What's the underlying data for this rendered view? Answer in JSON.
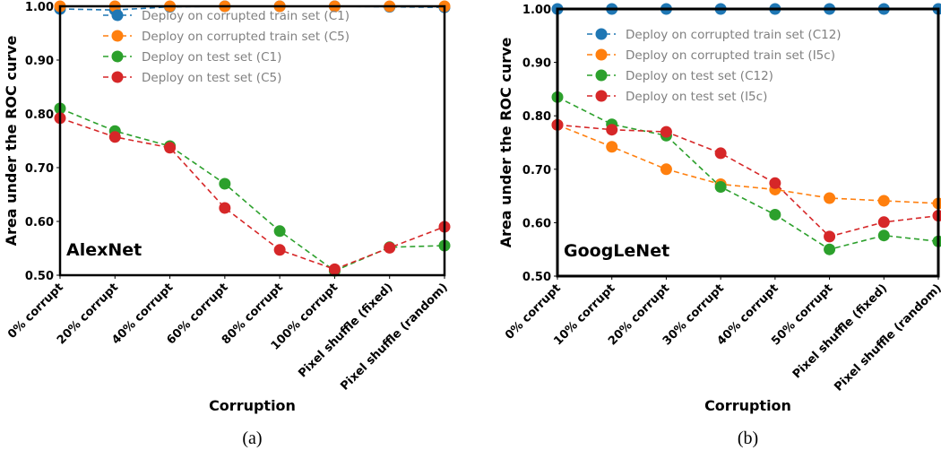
{
  "chart_data": [
    {
      "type": "line",
      "title": "AlexNet",
      "caption": "(a)",
      "xlabel": "Corruption",
      "ylabel": "Area under the ROC curve",
      "ylim": [
        0.5,
        1.0
      ],
      "yticks": [
        "0.50",
        "0.60",
        "0.70",
        "0.80",
        "0.90",
        "1.00"
      ],
      "categories": [
        "0% corrupt",
        "20% corrupt",
        "40% corrupt",
        "60% corrupt",
        "80% corrupt",
        "100% corrupt",
        "Pixel shuffle (fixed)",
        "Pixel shuffle (random)"
      ],
      "legend_position": "top-center",
      "series": [
        {
          "name": "Deploy on corrupted train set (C1)",
          "color": "#1f77b4",
          "values": [
            0.995,
            0.993,
            0.999,
            1.0,
            1.0,
            1.0,
            0.999,
            0.998
          ]
        },
        {
          "name": "Deploy on corrupted train set (C5)",
          "color": "#ff7f0e",
          "values": [
            1.0,
            1.0,
            1.0,
            1.0,
            1.0,
            1.0,
            1.0,
            1.0
          ]
        },
        {
          "name": "Deploy on test set (C1)",
          "color": "#2ca02c",
          "values": [
            0.81,
            0.768,
            0.74,
            0.67,
            0.582,
            0.508,
            0.552,
            0.555
          ]
        },
        {
          "name": "Deploy on test set (C5)",
          "color": "#d62728",
          "values": [
            0.792,
            0.757,
            0.737,
            0.625,
            0.547,
            0.511,
            0.551,
            0.59
          ]
        }
      ]
    },
    {
      "type": "line",
      "title": "GoogLeNet",
      "caption": "(b)",
      "xlabel": "Corruption",
      "ylabel": "Area under the ROC curve",
      "ylim": [
        0.5,
        1.0
      ],
      "yticks": [
        "0.50",
        "0.60",
        "0.70",
        "0.80",
        "0.90",
        "1.00"
      ],
      "categories": [
        "0% corrupt",
        "10% corrupt",
        "20% corrupt",
        "30% corrupt",
        "40% corrupt",
        "50% corrupt",
        "Pixel shuffle (fixed)",
        "Pixel shuffle (random)"
      ],
      "legend_position": "top-center",
      "series": [
        {
          "name": "Deploy on corrupted train set (C12)",
          "color": "#1f77b4",
          "values": [
            1.0,
            1.0,
            1.0,
            1.0,
            1.0,
            1.0,
            1.0,
            1.0
          ]
        },
        {
          "name": "Deploy on corrupted train set (I5c)",
          "color": "#ff7f0e",
          "values": [
            0.783,
            0.742,
            0.7,
            0.672,
            0.662,
            0.646,
            0.641,
            0.636
          ]
        },
        {
          "name": "Deploy on test set (C12)",
          "color": "#2ca02c",
          "values": [
            0.835,
            0.784,
            0.763,
            0.667,
            0.615,
            0.55,
            0.576,
            0.565
          ]
        },
        {
          "name": "Deploy on test set (I5c)",
          "color": "#d62728",
          "values": [
            0.783,
            0.774,
            0.77,
            0.73,
            0.674,
            0.574,
            0.601,
            0.613
          ]
        }
      ]
    }
  ]
}
